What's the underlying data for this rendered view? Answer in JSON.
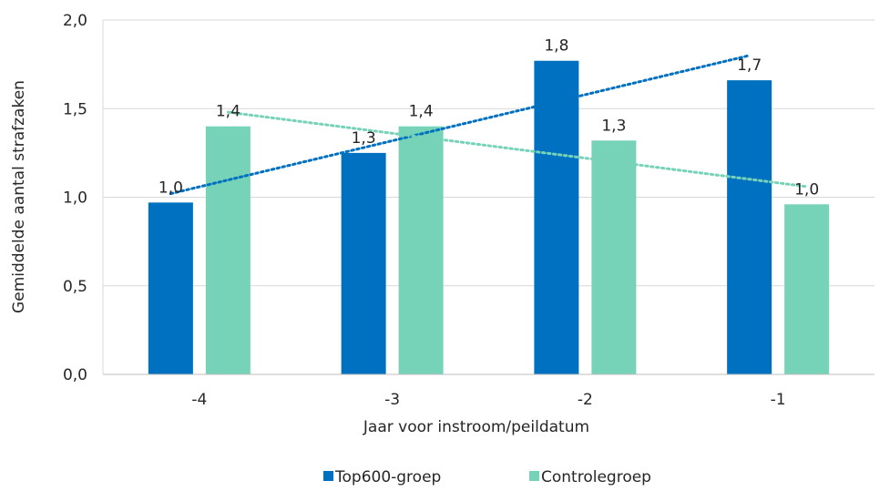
{
  "chart_data": {
    "type": "bar",
    "categories": [
      "-4",
      "-3",
      "-2",
      "-1"
    ],
    "series": [
      {
        "name": "Top600-groep",
        "values": [
          0.97,
          1.25,
          1.77,
          1.66
        ],
        "labels": [
          "1,0",
          "1,3",
          "1,8",
          "1,7"
        ],
        "color": "#0070C0"
      },
      {
        "name": "Controlegroep",
        "values": [
          1.4,
          1.4,
          1.32,
          0.96
        ],
        "labels": [
          "1,4",
          "1,4",
          "1,3",
          "1,0"
        ],
        "color": "#77D3B8"
      }
    ],
    "trendlines": [
      {
        "series": "Top600-groep",
        "style": "dotted",
        "color": "#0070C0",
        "values": [
          1.02,
          1.28,
          1.54,
          1.8
        ]
      },
      {
        "series": "Controlegroep",
        "style": "dotted",
        "color": "#77D3B8",
        "values": [
          1.48,
          1.34,
          1.2,
          1.06
        ]
      }
    ],
    "xlabel": "Jaar voor instroom/peildatum",
    "ylabel": "Gemiddelde aantal strafzaken",
    "ylim": [
      0,
      2.0
    ],
    "yticks": [
      0.0,
      0.5,
      1.0,
      1.5,
      2.0
    ],
    "ytick_labels": [
      "0,0",
      "0,5",
      "1,0",
      "1,5",
      "2,0"
    ],
    "grid": true,
    "legend_position": "bottom"
  }
}
